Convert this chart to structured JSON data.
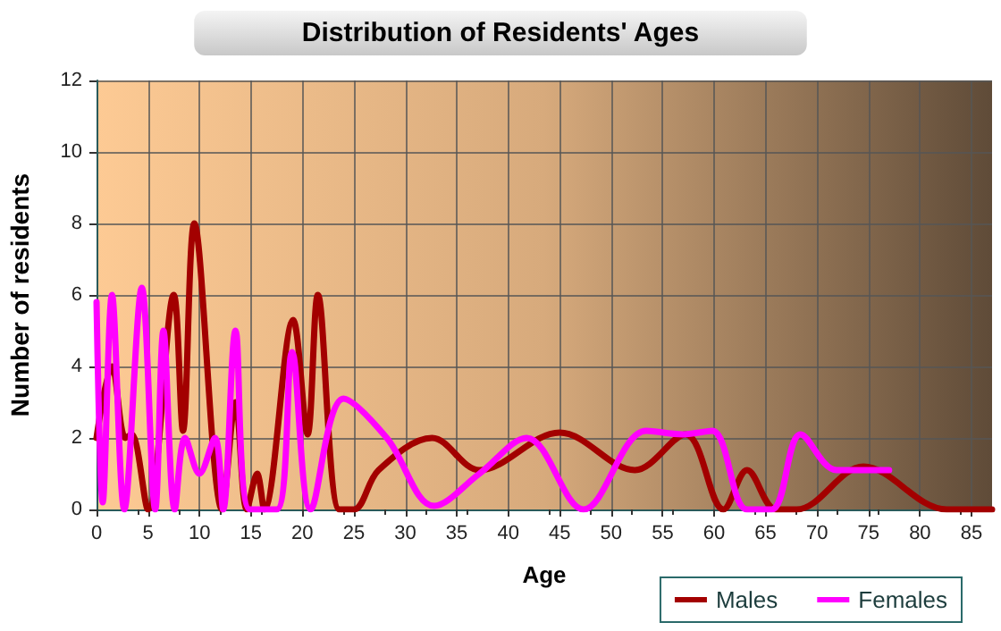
{
  "chart_data": {
    "type": "line",
    "title": "Distribution of Residents' Ages",
    "xlabel": "Age",
    "ylabel": "Number of residents",
    "xlim": [
      0,
      87
    ],
    "xticks": [
      0,
      5,
      10,
      15,
      20,
      25,
      30,
      35,
      40,
      45,
      50,
      55,
      60,
      65,
      70,
      75,
      80,
      85
    ],
    "ylim": [
      0,
      12
    ],
    "yticks": [
      0,
      2,
      4,
      6,
      8,
      10,
      12
    ],
    "grid": true,
    "legend": "bottom right",
    "marker": "none",
    "line_style": "solid",
    "series": [
      {
        "name": "Males",
        "color": "#a30000",
        "x": [
          0,
          1.5,
          2.8,
          3.4,
          5,
          7.5,
          8.4,
          9.5,
          12.2,
          13.5,
          14.6,
          15.6,
          16.3,
          19.1,
          20.5,
          21.5,
          23.6,
          25,
          27.4,
          32.6,
          37.2,
          45,
          52.3,
          57.2,
          60.9,
          63.2,
          66,
          68,
          74.5,
          82.6,
          87
        ],
        "values": [
          2,
          4,
          2,
          2.1,
          0,
          6,
          2.2,
          8,
          0,
          3,
          0,
          1,
          0,
          5.3,
          2.1,
          6,
          0,
          0,
          1.1,
          2,
          1.1,
          2.15,
          1.1,
          2.1,
          0,
          1.1,
          0,
          0,
          1.2,
          0,
          0
        ]
      },
      {
        "name": "Females",
        "color": "#ff00ff",
        "x": [
          0,
          0.6,
          1.5,
          2.7,
          4.4,
          5.7,
          6.5,
          7.6,
          8.6,
          10,
          11.5,
          12.3,
          13.5,
          14.9,
          17.5,
          19,
          20.8,
          24,
          28.2,
          32.8,
          37.2,
          41.8,
          47.3,
          53.4,
          57,
          59.8,
          63.2,
          65.6,
          68.4,
          71.9,
          77
        ],
        "values": [
          5.8,
          0.2,
          6,
          0,
          6.2,
          0,
          5,
          0,
          2,
          1,
          2,
          0,
          5,
          0,
          0,
          4.4,
          0,
          3.1,
          2,
          0.1,
          1,
          2,
          0,
          2.2,
          2.1,
          2.2,
          0,
          0,
          2.1,
          1.1,
          1.1
        ]
      }
    ]
  }
}
